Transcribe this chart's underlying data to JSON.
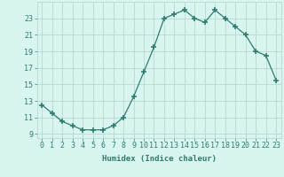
{
  "xlabel": "Humidex (Indice chaleur)",
  "x": [
    0,
    1,
    2,
    3,
    4,
    5,
    6,
    7,
    8,
    9,
    10,
    11,
    12,
    13,
    14,
    15,
    16,
    17,
    18,
    19,
    20,
    21,
    22,
    23
  ],
  "y": [
    12.5,
    11.5,
    10.5,
    10.0,
    9.5,
    9.5,
    9.5,
    10.0,
    11.0,
    13.5,
    16.5,
    19.5,
    23.0,
    23.5,
    24.0,
    23.0,
    22.5,
    24.0,
    23.0,
    22.0,
    21.0,
    19.0,
    18.5,
    15.5
  ],
  "ylim": [
    8.5,
    25.0
  ],
  "yticks": [
    9,
    11,
    13,
    15,
    17,
    19,
    21,
    23
  ],
  "line_color": "#2e7d6e",
  "marker": "+",
  "marker_size": 4,
  "bg_color": "#d9f5f0",
  "grid_color": "#b8d8d2",
  "xlabel_fontsize": 6.5,
  "tick_fontsize": 6.0
}
